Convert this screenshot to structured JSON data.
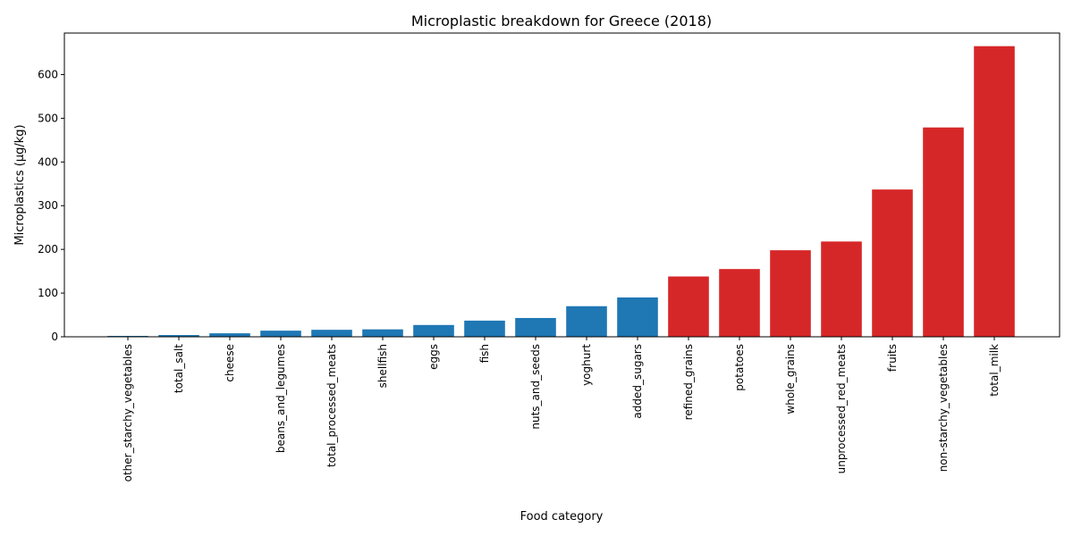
{
  "chart_data": {
    "type": "bar",
    "title": "Microplastic breakdown for Greece (2018)",
    "xlabel": "Food category",
    "ylabel": "Microplastics (µg/kg)",
    "ylim": [
      0,
      695
    ],
    "yticks": [
      0,
      100,
      200,
      300,
      400,
      500,
      600
    ],
    "grid": false,
    "categories": [
      "other_starchy_vegetables",
      "total_salt",
      "cheese",
      "beans_and_legumes",
      "total_processed_meats",
      "shellfish",
      "eggs",
      "fish",
      "nuts_and_seeds",
      "yoghurt",
      "added_sugars",
      "refined_grains",
      "potatoes",
      "whole_grains",
      "unprocessed_red_meats",
      "fruits",
      "non-starchy_vegetables",
      "total_milk"
    ],
    "values": [
      2,
      4,
      8,
      14,
      16,
      17,
      27,
      37,
      43,
      70,
      90,
      138,
      155,
      198,
      218,
      337,
      479,
      665
    ],
    "bar_colors": [
      "#1f77b4",
      "#1f77b4",
      "#1f77b4",
      "#1f77b4",
      "#1f77b4",
      "#1f77b4",
      "#1f77b4",
      "#1f77b4",
      "#1f77b4",
      "#1f77b4",
      "#1f77b4",
      "#d62728",
      "#d62728",
      "#d62728",
      "#d62728",
      "#d62728",
      "#d62728",
      "#d62728"
    ]
  }
}
